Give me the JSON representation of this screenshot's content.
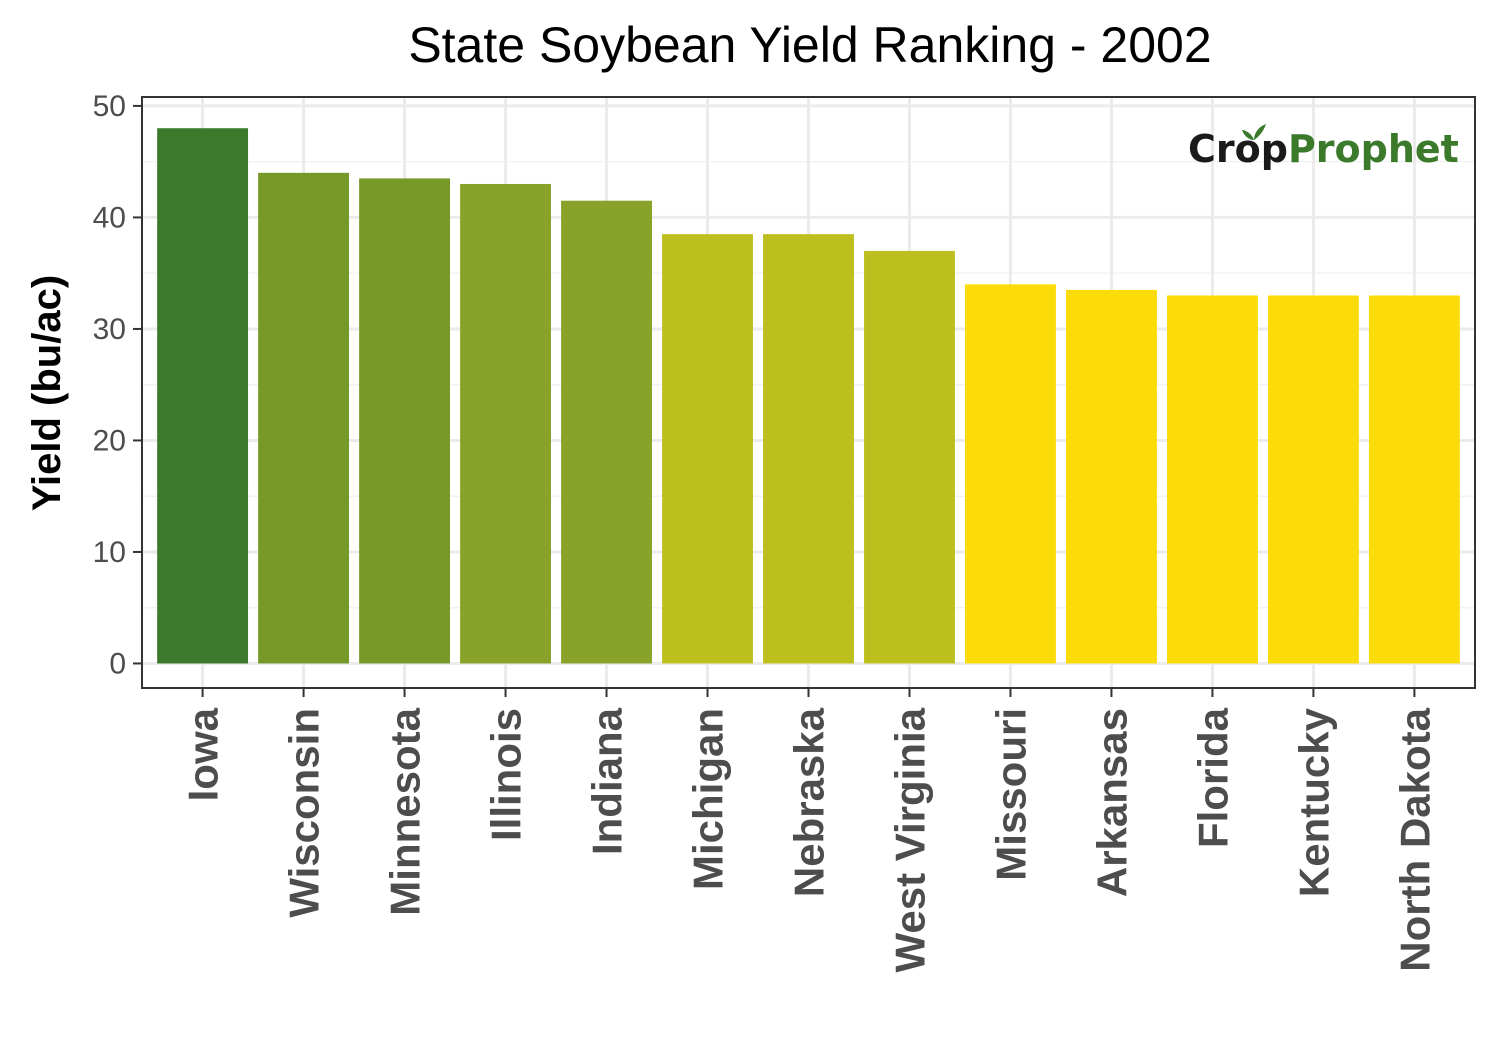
{
  "chart_data": {
    "type": "bar",
    "title": "State Soybean Yield Ranking - 2002",
    "xlabel": "",
    "ylabel": "Yield (bu/ac)",
    "ylim": [
      -2.2,
      50.8
    ],
    "yticks": [
      0,
      10,
      20,
      30,
      40,
      50
    ],
    "grid": true,
    "categories": [
      "Iowa",
      "Wisconsin",
      "Minnesota",
      "Illinois",
      "Indiana",
      "Michigan",
      "Nebraska",
      "West Virginia",
      "Missouri",
      "Arkansas",
      "Florida",
      "Kentucky",
      "North Dakota"
    ],
    "values": [
      48,
      44,
      43.5,
      43,
      41.5,
      38.5,
      38.5,
      37,
      34,
      33.5,
      33,
      33,
      33
    ],
    "colors": [
      "#3a7a2a",
      "#77992a",
      "#77992a",
      "#89a229",
      "#89a229",
      "#bdbf1f",
      "#bdbf1f",
      "#bdbf1f",
      "#fbdc0a",
      "#fbdc0a",
      "#fbdc0a",
      "#fbdc0a",
      "#fbdc0a"
    ]
  },
  "logo": {
    "part1": "Crop",
    "part2": "Prophet",
    "color1": "#1a1a1a",
    "color2": "#3a7a2a",
    "icon": "sprout-icon"
  }
}
